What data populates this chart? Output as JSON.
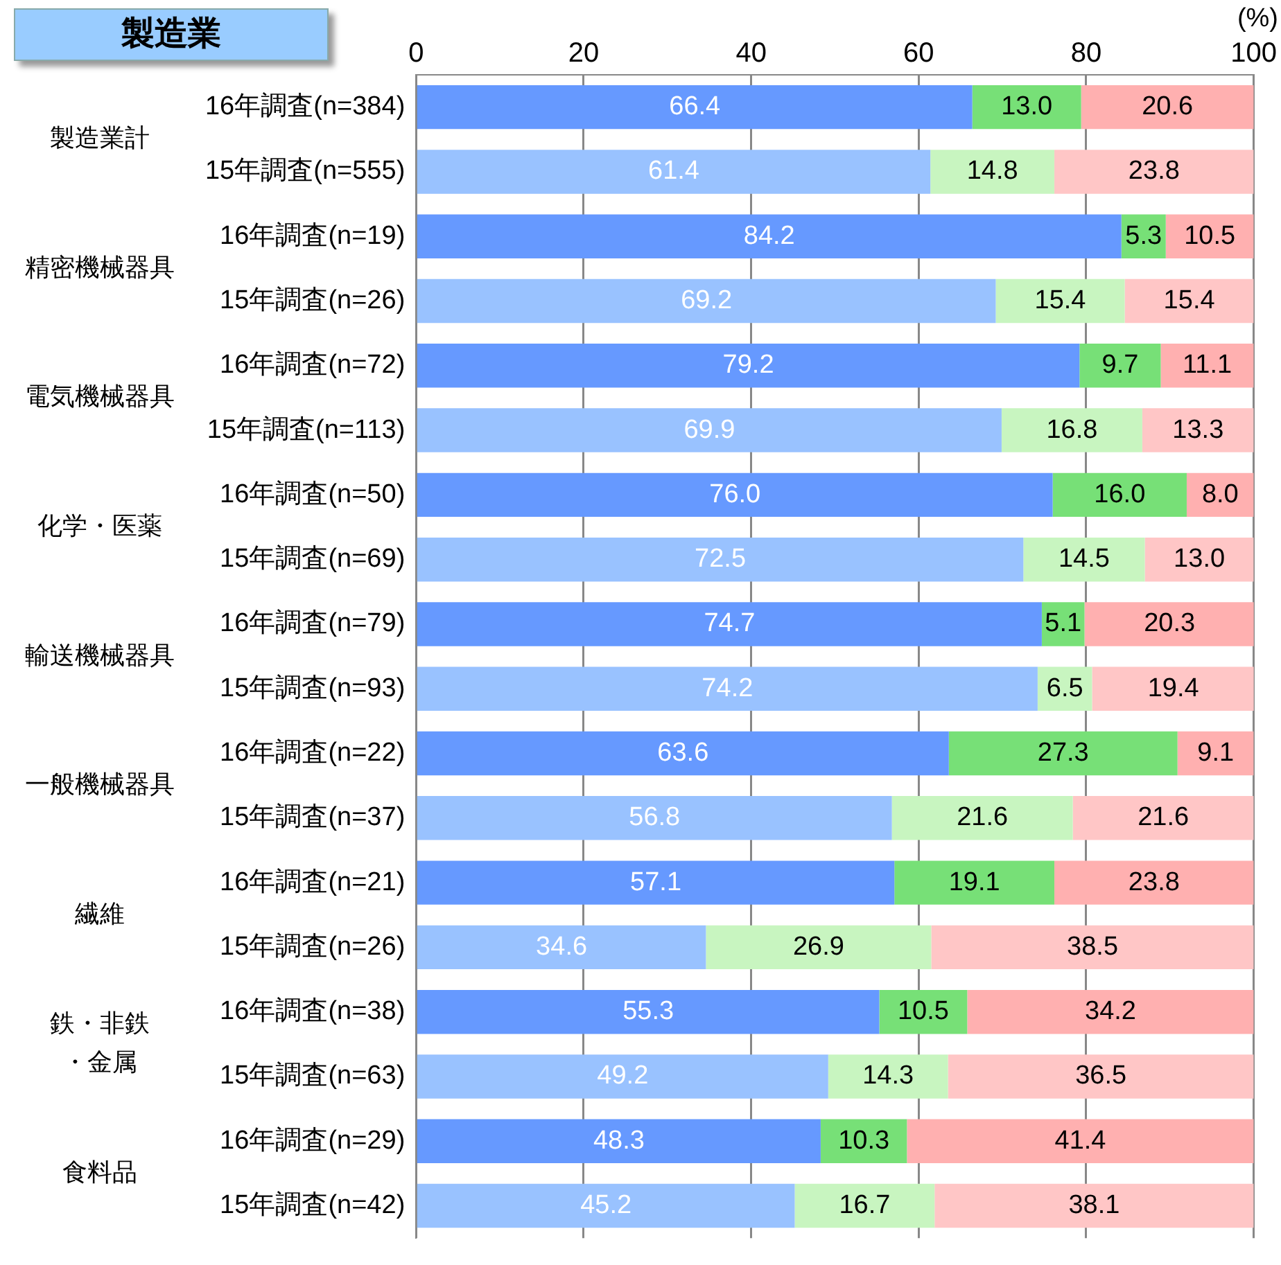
{
  "chart_data": {
    "type": "bar",
    "orientation": "horizontal",
    "stacked": true,
    "title": "製造業",
    "xlabel": "(%)",
    "categories": [
      "16年調査(n=384)",
      "15年調査(n=555)",
      "16年調査(n=19)",
      "15年調査(n=26)",
      "16年調査(n=72)",
      "15年調査(n=113)",
      "16年調査(n=50)",
      "15年調査(n=69)",
      "16年調査(n=79)",
      "15年調査(n=93)",
      "16年調査(n=22)",
      "15年調査(n=37)",
      "16年調査(n=21)",
      "15年調査(n=26)",
      "16年調査(n=38)",
      "15年調査(n=63)",
      "16年調査(n=29)",
      "15年調査(n=42)"
    ],
    "series": [
      {
        "colors": [
          "#6699ff",
          "#99c2ff",
          "#6699ff",
          "#99c2ff",
          "#6699ff",
          "#99c2ff",
          "#6699ff",
          "#99c2ff",
          "#6699ff",
          "#99c2ff",
          "#6699ff",
          "#99c2ff",
          "#6699ff",
          "#99c2ff",
          "#6699ff",
          "#99c2ff",
          "#6699ff",
          "#99c2ff"
        ],
        "values": [
          66.4,
          61.4,
          84.2,
          69.2,
          79.2,
          69.9,
          76.0,
          72.5,
          74.7,
          74.2,
          63.6,
          56.8,
          57.1,
          34.6,
          55.3,
          49.2,
          48.3,
          45.2
        ],
        "value_labels": [
          "66.4",
          "61.4",
          "84.2",
          "69.2",
          "79.2",
          "69.9",
          "76.0",
          "72.5",
          "74.7",
          "74.2",
          "63.6",
          "56.8",
          "57.1",
          "34.6",
          "55.3",
          "49.2",
          "48.3",
          "45.2"
        ]
      },
      {
        "colors": [
          "#77e077",
          "#c8f5c0",
          "#77e077",
          "#c8f5c0",
          "#77e077",
          "#c8f5c0",
          "#77e077",
          "#c8f5c0",
          "#77e077",
          "#c8f5c0",
          "#77e077",
          "#c8f5c0",
          "#77e077",
          "#c8f5c0",
          "#77e077",
          "#c8f5c0",
          "#77e077",
          "#c8f5c0"
        ],
        "values": [
          13.0,
          14.8,
          5.3,
          15.4,
          9.7,
          16.8,
          16.0,
          14.5,
          5.1,
          6.5,
          27.3,
          21.6,
          19.1,
          26.9,
          10.5,
          14.3,
          10.3,
          16.7
        ],
        "value_labels": [
          "13.0",
          "14.8",
          "5.3",
          "15.4",
          "9.7",
          "16.8",
          "16.0",
          "14.5",
          "5.1",
          "6.5",
          "27.3",
          "21.6",
          "19.1",
          "26.9",
          "10.5",
          "14.3",
          "10.3",
          "16.7"
        ]
      },
      {
        "colors": [
          "#ffb0b0",
          "#ffc6c6",
          "#ffb0b0",
          "#ffc6c6",
          "#ffb0b0",
          "#ffc6c6",
          "#ffb0b0",
          "#ffc6c6",
          "#ffb0b0",
          "#ffc6c6",
          "#ffb0b0",
          "#ffc6c6",
          "#ffb0b0",
          "#ffc6c6",
          "#ffb0b0",
          "#ffc6c6",
          "#ffb0b0",
          "#ffc6c6"
        ],
        "values": [
          20.6,
          23.8,
          10.5,
          15.4,
          11.1,
          13.3,
          8.0,
          13.0,
          20.3,
          19.4,
          9.1,
          21.6,
          23.8,
          38.5,
          34.2,
          36.5,
          41.4,
          38.1
        ],
        "value_labels": [
          "20.6",
          "23.8",
          "10.5",
          "15.4",
          "11.1",
          "13.3",
          "8.0",
          "13.0",
          "20.3",
          "19.4",
          "9.1",
          "21.6",
          "23.8",
          "38.5",
          "34.2",
          "36.5",
          "41.4",
          "38.1"
        ]
      }
    ],
    "xlim": [
      0,
      100
    ],
    "xticks": [
      0,
      20,
      40,
      60,
      80,
      100
    ],
    "grid": "x",
    "legend": false,
    "annotations": [
      "製造業計",
      "精密機械器具",
      "電気機械器具",
      "化学・医薬",
      "輸送機械器具",
      "一般機械器具",
      "繊維",
      "鉄・非鉄・金属",
      "食料品"
    ]
  }
}
